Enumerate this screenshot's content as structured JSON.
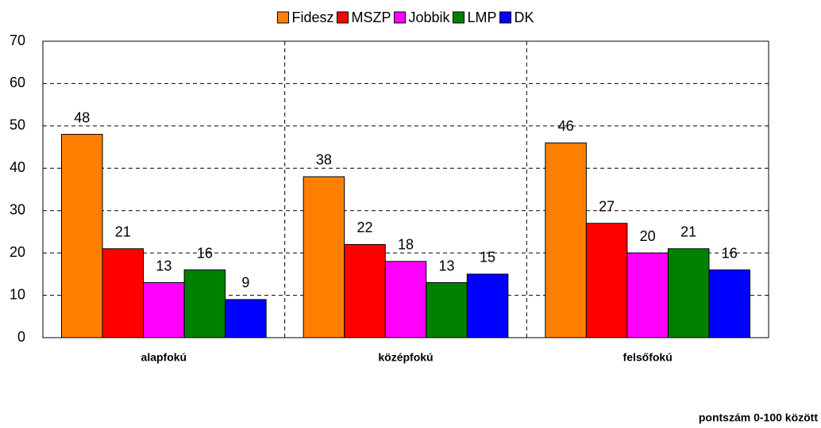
{
  "chart_data": {
    "type": "bar",
    "annotation": "pontszám 0-100 között",
    "categories": [
      "alapfokú",
      "középfokú",
      "felsőfokú"
    ],
    "series": [
      {
        "name": "Fidesz",
        "color": "#ff8000",
        "values": [
          48,
          38,
          46
        ]
      },
      {
        "name": "MSZP",
        "color": "#ff0000",
        "values": [
          21,
          22,
          27
        ]
      },
      {
        "name": "Jobbik",
        "color": "#ff00ff",
        "values": [
          13,
          18,
          20
        ]
      },
      {
        "name": "LMP",
        "color": "#008000",
        "values": [
          16,
          13,
          21
        ]
      },
      {
        "name": "DK",
        "color": "#0000ff",
        "values": [
          9,
          15,
          16
        ]
      }
    ],
    "ylim": [
      0,
      70
    ],
    "yticks": [
      0,
      10,
      20,
      30,
      40,
      50,
      60,
      70
    ],
    "grid": true,
    "legend": "top"
  }
}
